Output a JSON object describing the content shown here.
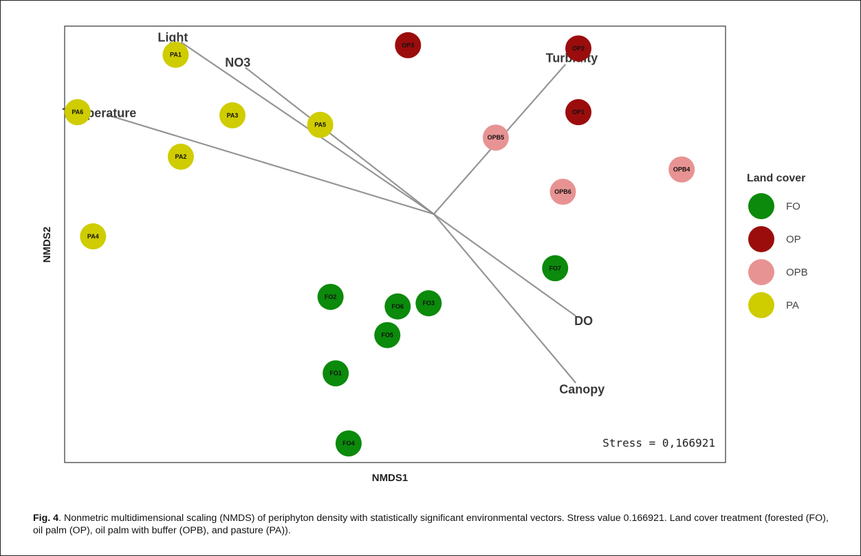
{
  "chart_data": {
    "type": "scatter",
    "xlabel": "NMDS1",
    "ylabel": "NMDS2",
    "stress_text": "Stress = 0,166921",
    "legend": {
      "title": "Land cover",
      "position": "right",
      "groups": [
        {
          "name": "FO",
          "color": "#0b8a0b"
        },
        {
          "name": "OP",
          "color": "#9b0d0d"
        },
        {
          "name": "OPB",
          "color": "#e89393"
        },
        {
          "name": "PA",
          "color": "#cfcc00"
        }
      ]
    },
    "points": [
      {
        "label": "PA1",
        "group": "PA",
        "x": -1.0,
        "y": 0.5
      },
      {
        "label": "PA2",
        "group": "PA",
        "x": -0.98,
        "y": 0.18
      },
      {
        "label": "PA3",
        "group": "PA",
        "x": -0.78,
        "y": 0.31
      },
      {
        "label": "PA4",
        "group": "PA",
        "x": -1.32,
        "y": -0.07
      },
      {
        "label": "PA5",
        "group": "PA",
        "x": -0.44,
        "y": 0.28
      },
      {
        "label": "PA6",
        "group": "PA",
        "x": -1.38,
        "y": 0.32
      },
      {
        "label": "OP1",
        "group": "OP",
        "x": 0.56,
        "y": 0.32
      },
      {
        "label": "OP2",
        "group": "OP",
        "x": 0.56,
        "y": 0.52
      },
      {
        "label": "OP3",
        "group": "OP",
        "x": -0.1,
        "y": 0.53
      },
      {
        "label": "OPB4",
        "group": "OPB",
        "x": 0.96,
        "y": 0.14
      },
      {
        "label": "OPB5",
        "group": "OPB",
        "x": 0.24,
        "y": 0.24
      },
      {
        "label": "OPB6",
        "group": "OPB",
        "x": 0.5,
        "y": 0.07
      },
      {
        "label": "FO1",
        "group": "FO",
        "x": -0.38,
        "y": -0.5
      },
      {
        "label": "FO2",
        "group": "FO",
        "x": -0.4,
        "y": -0.26
      },
      {
        "label": "FO3",
        "group": "FO",
        "x": -0.02,
        "y": -0.28
      },
      {
        "label": "FO4",
        "group": "FO",
        "x": -0.33,
        "y": -0.72
      },
      {
        "label": "FO5",
        "group": "FO",
        "x": -0.18,
        "y": -0.38
      },
      {
        "label": "FO6",
        "group": "FO",
        "x": -0.14,
        "y": -0.29
      },
      {
        "label": "FO7",
        "group": "FO",
        "x": 0.47,
        "y": -0.17
      }
    ],
    "vectors": [
      {
        "name": "Light",
        "x": -0.98,
        "y": 0.54
      },
      {
        "name": "NO3",
        "x": -0.73,
        "y": 0.46
      },
      {
        "name": "Temperature",
        "x": -1.26,
        "y": 0.31
      },
      {
        "name": "Turbidity",
        "x": 0.51,
        "y": 0.47
      },
      {
        "name": "DO",
        "x": 0.55,
        "y": -0.32
      },
      {
        "name": "Canopy",
        "x": 0.55,
        "y": -0.53
      }
    ],
    "vector_origin": {
      "x": 0,
      "y": 0
    },
    "xlim": [
      -1.43,
      1.13
    ],
    "ylim": [
      -0.78,
      0.59
    ],
    "grid": false
  },
  "caption": {
    "fig_label": "Fig. 4",
    "text": ". Nonmetric multidimensional scaling (NMDS) of periphyton density with statistically significant environmental vectors. Stress value 0.166921. Land cover treatment (forested (FO), oil palm (OP), oil palm with buffer (OPB), and pasture (PA))."
  }
}
